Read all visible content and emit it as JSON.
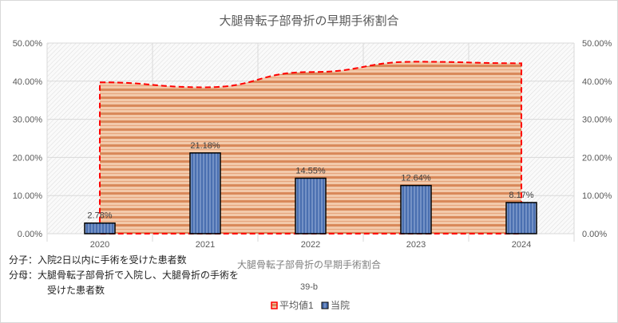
{
  "chart_data": {
    "type": "bar",
    "title": "大腿骨転子部骨折の早期手術割合",
    "categories": [
      "2020",
      "2021",
      "2022",
      "2023",
      "2024"
    ],
    "series": [
      {
        "name": "平均値1",
        "kind": "area",
        "values": [
          39.7,
          38.4,
          42.4,
          45.1,
          44.7
        ],
        "color": "#e8a77c",
        "line_color": "#ff0000"
      },
      {
        "name": "当院",
        "kind": "bar",
        "values": [
          2.78,
          21.18,
          14.55,
          12.64,
          8.17
        ],
        "color": "#4a6fb0"
      }
    ],
    "data_labels": [
      "2.78%",
      "21.18%",
      "14.55%",
      "12.64%",
      "8.17%"
    ],
    "ylim": [
      0,
      50
    ],
    "yticks": [
      "0.00%",
      "10.00%",
      "20.00%",
      "30.00%",
      "40.00%",
      "50.00%"
    ],
    "xlabel": "大腿骨転子部骨折の早期手術割合",
    "subtitle": "39-b",
    "legend": [
      "平均値1",
      "当院"
    ],
    "legend_position": "bottom",
    "grid": true
  },
  "notes": {
    "line1": "分子：入院2日以内に手術を受けた患者数",
    "line2": "分母：大腿骨転子部骨折で入院し、大腿骨折の手術を",
    "line3": "受けた患者数"
  }
}
